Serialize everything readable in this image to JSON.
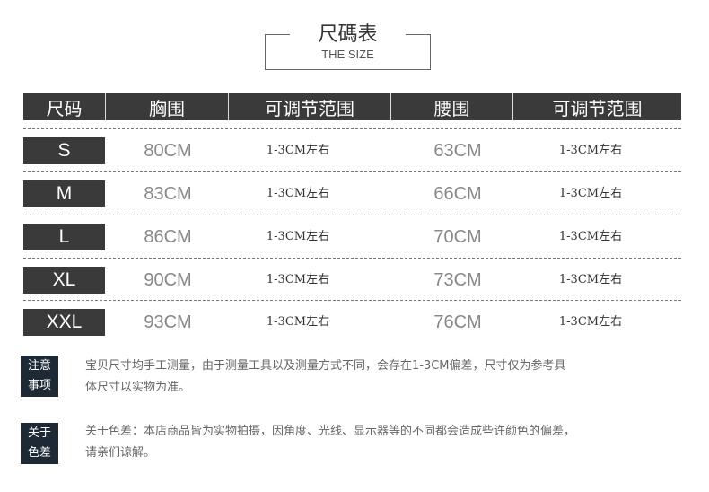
{
  "title": "尺碼表",
  "subtitle": "THE SIZE",
  "header": [
    "尺码",
    "胸围",
    "可调节范围",
    "腰围",
    "可调节范围"
  ],
  "rows": [
    {
      "size": "S",
      "chest": "80CM",
      "chest_adj": "1-3CM左右",
      "waist": "63CM",
      "waist_adj": "1-3CM左右"
    },
    {
      "size": "M",
      "chest": "83CM",
      "chest_adj": "1-3CM左右",
      "waist": "66CM",
      "waist_adj": "1-3CM左右"
    },
    {
      "size": "L",
      "chest": "86CM",
      "chest_adj": "1-3CM左右",
      "waist": "70CM",
      "waist_adj": "1-3CM左右"
    },
    {
      "size": "XL",
      "chest": "90CM",
      "chest_adj": "1-3CM左右",
      "waist": "73CM",
      "waist_adj": "1-3CM左右"
    },
    {
      "size": "XXL",
      "chest": "93CM",
      "chest_adj": "1-3CM左右",
      "waist": "76CM",
      "waist_adj": "1-3CM左右"
    }
  ],
  "notes": [
    {
      "label_1": "注意",
      "label_2": "事项",
      "line_1": "宝贝尺寸均手工测量，由于测量工具以及测量方式不同，会存在1-3CM偏差，尺寸仅为参考具",
      "line_2": "体尺寸以实物为准。"
    },
    {
      "label_1": "关于",
      "label_2": "色差",
      "line_1": "关于色差：本店商品皆为实物拍摄，因角度、光线、显示器等的不同都会造成些许颜色的偏差，",
      "line_2": "请亲们谅解。"
    }
  ]
}
